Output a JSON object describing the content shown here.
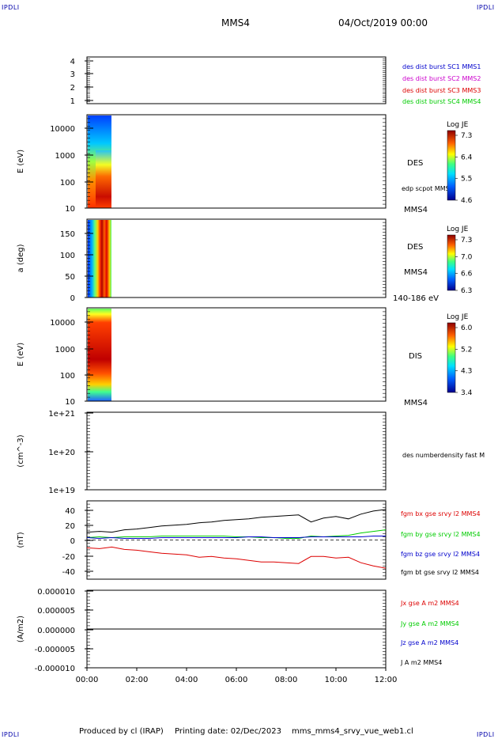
{
  "header": {
    "corner_tl": "IPDLI",
    "corner_tr": "IPDLI",
    "corner_bl": "IPDLI",
    "corner_br": "IPDLI",
    "spacecraft": "MMS4",
    "date": "04/Oct/2019 00:00"
  },
  "footer": {
    "produced_by": "Produced by cl (IRAP)",
    "printing_date": "Printing date: 02/Dec/2023",
    "file": "mms_mms4_srvy_vue_web1.cl"
  },
  "colors": {
    "blue": "#0000cc",
    "magenta": "#cc00cc",
    "red": "#dd0000",
    "green": "#00cc00",
    "black": "#000000"
  },
  "chart_data": [
    {
      "type": "line",
      "id": "sc-availability",
      "y_ticks": [
        "4",
        "3",
        "2",
        "1"
      ],
      "ylim": [
        0.5,
        4.5
      ],
      "labels": [
        {
          "text": "des dist burst SC1 MMS1",
          "color": "#0000cc"
        },
        {
          "text": "des dist burst SC2 MMS2",
          "color": "#cc00cc"
        },
        {
          "text": "des dist burst SC3 MMS3",
          "color": "#dd0000"
        },
        {
          "text": "des dist burst SC4 MMS4",
          "color": "#00cc00"
        }
      ]
    },
    {
      "type": "heatmap",
      "id": "des-energy",
      "ylabel": "E (eV)",
      "y_ticks": [
        "10000",
        "1000",
        "100",
        "10"
      ],
      "ylim": [
        10,
        30000
      ],
      "yscale": "log",
      "right_labels": [
        "DES",
        "edp scpot MMS4",
        "MMS4"
      ],
      "colorbar": {
        "title": "Log JE",
        "ticks": [
          "7.3",
          "6.4",
          "5.5",
          "4.6"
        ]
      }
    },
    {
      "type": "heatmap",
      "id": "des-pitch",
      "ylabel": "a (deg)",
      "y_ticks": [
        "150",
        "100",
        "50",
        "0"
      ],
      "ylim": [
        0,
        180
      ],
      "right_labels": [
        "DES",
        "MMS4",
        "140-186 eV"
      ],
      "colorbar": {
        "title": "Log JE",
        "ticks": [
          "7.3",
          "7.0",
          "6.6",
          "6.3"
        ]
      }
    },
    {
      "type": "heatmap",
      "id": "dis-energy",
      "ylabel": "E (eV)",
      "y_ticks": [
        "10000",
        "1000",
        "100",
        "10"
      ],
      "ylim": [
        10,
        30000
      ],
      "yscale": "log",
      "right_labels": [
        "DIS",
        "MMS4"
      ],
      "colorbar": {
        "title": "Log JE",
        "ticks": [
          "6.0",
          "5.2",
          "4.3",
          "3.4"
        ]
      }
    },
    {
      "type": "line",
      "id": "density",
      "ylabel": "(cm^-3)",
      "y_ticks": [
        "1e+21",
        "1e+20",
        "1e+19"
      ],
      "ylim": [
        1e+19,
        1e+21
      ],
      "yscale": "log",
      "labels": [
        {
          "text": "des numberdensity fast M",
          "color": "#000000"
        }
      ]
    },
    {
      "type": "line",
      "id": "magnetic-field",
      "ylabel": "(nT)",
      "y_ticks": [
        "40",
        "20",
        "0",
        "-20",
        "-40"
      ],
      "ylim": [
        -50,
        50
      ],
      "x": [
        0,
        0.5,
        1,
        1.5,
        2,
        2.5,
        3,
        3.5,
        4,
        4.5,
        5,
        5.5,
        6,
        6.5,
        7,
        7.5,
        8,
        8.5,
        9,
        9.5,
        10,
        10.5,
        11,
        11.5,
        12
      ],
      "series": [
        {
          "name": "fgm bx gse srvy l2 MMS4",
          "color": "#dd0000",
          "values": [
            -10,
            -11,
            -9,
            -12,
            -13,
            -15,
            -17,
            -18,
            -19,
            -22,
            -21,
            -23,
            -24,
            -26,
            -28,
            -28,
            -29,
            -30,
            -21,
            -21,
            -23,
            -22,
            -29,
            -33,
            -36
          ]
        },
        {
          "name": "fgm by gse srvy l2 MMS4",
          "color": "#00cc00",
          "values": [
            3,
            4,
            3,
            4,
            4,
            4,
            5,
            5,
            5,
            5,
            5,
            5,
            4,
            4,
            3,
            3,
            2,
            2,
            5,
            4,
            5,
            6,
            9,
            11,
            13
          ]
        },
        {
          "name": "fgm bz gse srvy l2 MMS4",
          "color": "#0000cc",
          "values": [
            3,
            2,
            3,
            2,
            2,
            2,
            3,
            3,
            3,
            3,
            3,
            3,
            3,
            4,
            4,
            3,
            3,
            3,
            4,
            4,
            4,
            4,
            4,
            5,
            5
          ]
        },
        {
          "name": "fgm bt gse srvy l2 MMS4",
          "color": "#000000",
          "values": [
            10,
            11,
            10,
            13,
            14,
            16,
            18,
            19,
            20,
            22,
            23,
            25,
            26,
            27,
            29,
            30,
            31,
            32,
            23,
            28,
            30,
            27,
            33,
            37,
            39
          ]
        }
      ]
    },
    {
      "type": "line",
      "id": "current-density",
      "ylabel": "(A/m2)",
      "y_ticks": [
        "0.000010",
        "0.000005",
        "0.000000",
        "-0.000005",
        "-0.000010"
      ],
      "ylim": [
        -1e-05,
        1e-05
      ],
      "x_ticks": [
        "00:00",
        "02:00",
        "04:00",
        "06:00",
        "08:00",
        "10:00",
        "12:00"
      ],
      "xlim": [
        0,
        12
      ],
      "series": [
        {
          "name": "Jx gse A m2 MMS4",
          "color": "#dd0000",
          "values": [
            0,
            0
          ]
        },
        {
          "name": "Jy gse A m2 MMS4",
          "color": "#00cc00",
          "values": [
            0,
            0
          ]
        },
        {
          "name": "Jz gse A m2 MMS4",
          "color": "#0000cc",
          "values": [
            0,
            0
          ]
        },
        {
          "name": "J A m2 MMS4",
          "color": "#000000",
          "values": [
            0,
            0
          ]
        }
      ]
    }
  ]
}
